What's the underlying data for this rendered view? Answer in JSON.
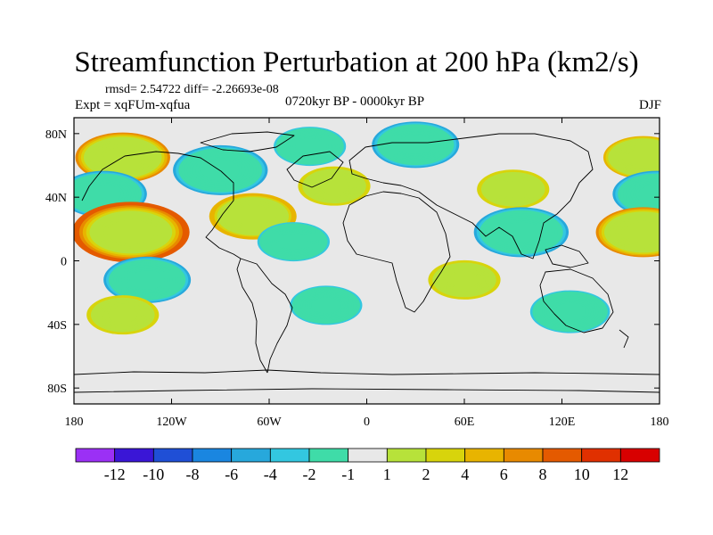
{
  "chart_data": {
    "type": "heatmap",
    "title": "Streamfunction Perturbation at 200 hPa (km2/s)",
    "stats_line": "rmsd= 2.54722 diff= -2.26693e-08",
    "expt_line": "Expt = xqFUm-xqfua",
    "period": "0720kyr BP - 0000kyr BP",
    "season": "DJF",
    "x_ticks": [
      "180",
      "120W",
      "60W",
      "0",
      "60E",
      "120E",
      "180"
    ],
    "y_ticks": [
      "80N",
      "40N",
      "0",
      "40S",
      "80S"
    ],
    "colorbar": {
      "labels": [
        "-12",
        "-10",
        "-8",
        "-6",
        "-4",
        "-2",
        "-1",
        "1",
        "2",
        "4",
        "6",
        "8",
        "10",
        "12"
      ],
      "colors": [
        "#9b30f5",
        "#3a16d6",
        "#1f4fd6",
        "#1a86e0",
        "#27a8dc",
        "#33c7e0",
        "#3fdca8",
        "#e8e8e8",
        "#b7e23a",
        "#d8d40c",
        "#e8b400",
        "#e88a00",
        "#e45a00",
        "#e03000",
        "#d80000"
      ]
    },
    "features": [
      {
        "lon": -150,
        "lat": 65,
        "level": 6
      },
      {
        "lon": -90,
        "lat": 57,
        "level": -6
      },
      {
        "lon": -162,
        "lat": 42,
        "level": -5
      },
      {
        "lon": -145,
        "lat": 18,
        "level": 9
      },
      {
        "lon": -135,
        "lat": -12,
        "level": -5
      },
      {
        "lon": -150,
        "lat": -34,
        "level": 3
      },
      {
        "lon": -70,
        "lat": 28,
        "level": 5
      },
      {
        "lon": -20,
        "lat": 47,
        "level": 3
      },
      {
        "lon": -45,
        "lat": 12,
        "level": -3
      },
      {
        "lon": -25,
        "lat": -28,
        "level": -3
      },
      {
        "lon": -35,
        "lat": 72,
        "level": -3
      },
      {
        "lon": 30,
        "lat": 73,
        "level": -5
      },
      {
        "lon": 90,
        "lat": 45,
        "level": 3
      },
      {
        "lon": 95,
        "lat": 18,
        "level": -6
      },
      {
        "lon": 60,
        "lat": -12,
        "level": 3
      },
      {
        "lon": 125,
        "lat": -32,
        "level": -4
      },
      {
        "lon": 170,
        "lat": 65,
        "level": 4
      },
      {
        "lon": 178,
        "lat": 42,
        "level": -5
      },
      {
        "lon": 170,
        "lat": 18,
        "level": 6
      }
    ]
  }
}
